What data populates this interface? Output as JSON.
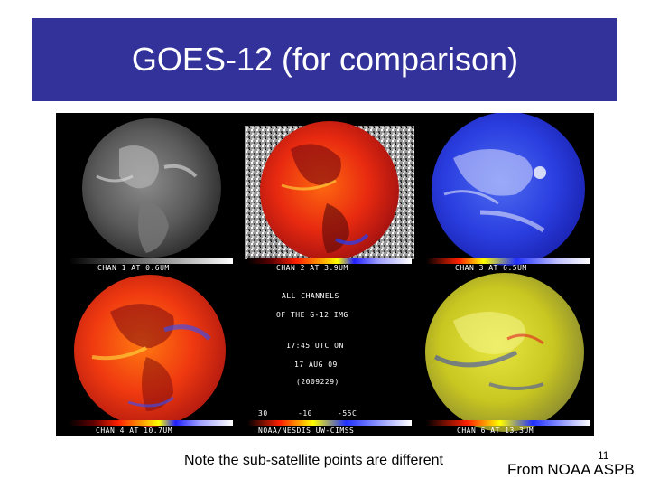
{
  "slide": {
    "title": "GOES-12 (for comparison)",
    "note": "Note the sub-satellite points are different",
    "slide_number": "11",
    "credit": "From NOAA ASPB"
  },
  "figure": {
    "channels": [
      {
        "label": "CHAN 1 AT 0.6UM",
        "style": "visible-grayscale"
      },
      {
        "label": "CHAN 2 AT 3.9UM",
        "style": "ir-color-enhanced"
      },
      {
        "label": "CHAN 3 AT 6.5UM",
        "style": "water-vapor-blue"
      },
      {
        "label": "CHAN 4 AT 10.7UM",
        "style": "ir-color-enhanced"
      },
      {
        "label": "CHAN 6 AT 13.3UM",
        "style": "co2-yellow"
      }
    ],
    "center": {
      "line1": "ALL CHANNELS",
      "line2": "OF THE G-12 IMG",
      "line3": "17:45 UTC ON",
      "line4": "17 AUG 09",
      "line5": "(2009229)",
      "scale_left": "30",
      "scale_mid": "-10",
      "scale_right": "-55C",
      "credit": "NOAA/NESDIS  UW-CIMSS"
    },
    "colors": {
      "background": "#000000",
      "title_bar": "#32329a"
    }
  }
}
